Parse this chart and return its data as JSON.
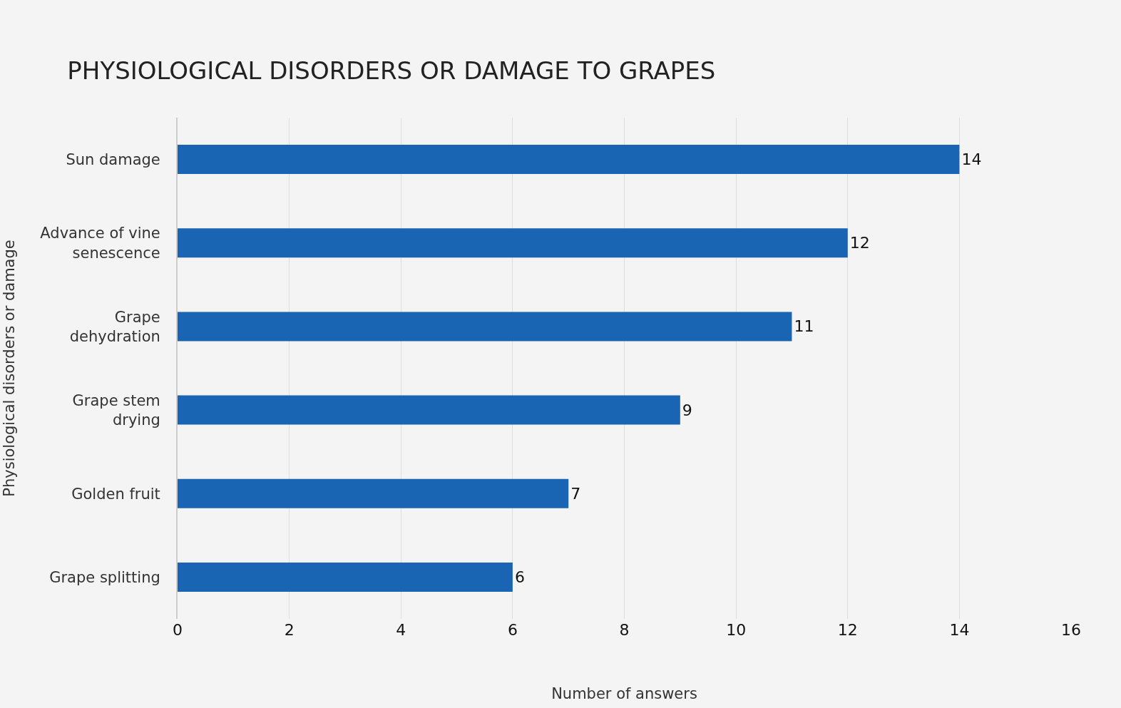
{
  "chart_data": {
    "type": "bar",
    "orientation": "horizontal",
    "title": "PHYSIOLOGICAL DISORDERS OR DAMAGE TO GRAPES",
    "xlabel": "Number of answers",
    "ylabel": "Physiological disorders or damage",
    "categories": [
      "Sun damage",
      "Advance of vine senescence",
      "Grape dehydration",
      "Grape stem drying",
      "Golden fruit",
      "Grape splitting"
    ],
    "values": [
      14,
      12,
      11,
      9,
      7,
      6
    ],
    "color": "#1a64b4",
    "xlim": [
      0,
      16
    ],
    "xticks": [
      0,
      2,
      4,
      6,
      8,
      10,
      12,
      14,
      16
    ],
    "grid": "x",
    "data_labels": true,
    "legend": false
  }
}
